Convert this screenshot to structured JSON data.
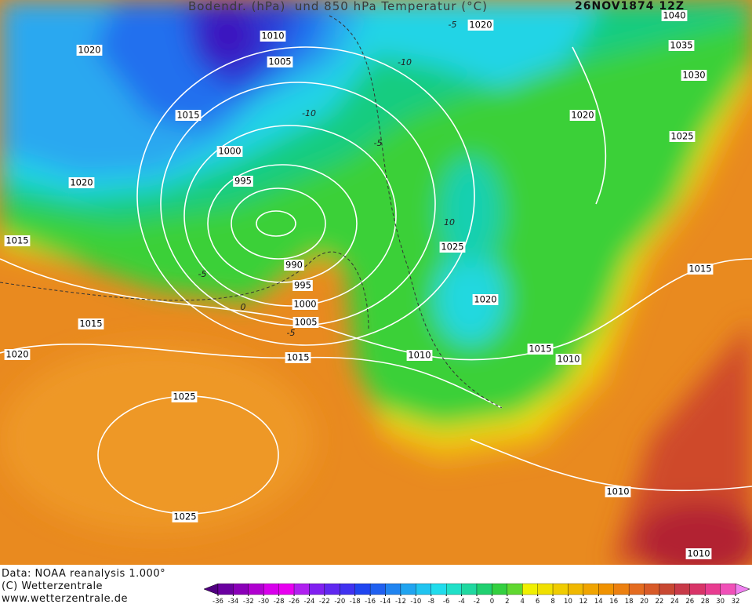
{
  "header": {
    "title": "Bodendr. (hPa)  und 850 hPa Temperatur (°C)",
    "date": "26NOV1874 12Z"
  },
  "isobar_labels": [
    "1010",
    "1005",
    "1020",
    "1015",
    "1000",
    "995",
    "1020",
    "1015",
    "990",
    "995",
    "1000",
    "1005",
    "1015",
    "1015",
    "1020",
    "1010",
    "1025",
    "1025",
    "1020",
    "1035",
    "1030",
    "1020",
    "1025",
    "1025",
    "1020",
    "1015",
    "1010",
    "1015",
    "1010",
    "1010",
    "1040"
  ],
  "isotherm_labels": [
    "-5",
    "-10",
    "-10",
    "-5",
    "-5",
    "0",
    "-5",
    "10"
  ],
  "footer": {
    "source": "Data: NOAA reanalysis 1.000°",
    "copyright": "(C) Wetterzentrale",
    "url": "www.wetterzentrale.de"
  },
  "colorbar": {
    "ticks": [
      -36,
      -34,
      -32,
      -30,
      -28,
      -26,
      -24,
      -22,
      -20,
      -18,
      -16,
      -14,
      -12,
      -10,
      -8,
      -6,
      -4,
      -2,
      0,
      2,
      4,
      6,
      8,
      10,
      12,
      14,
      16,
      18,
      20,
      22,
      24,
      26,
      28,
      30,
      32
    ]
  }
}
